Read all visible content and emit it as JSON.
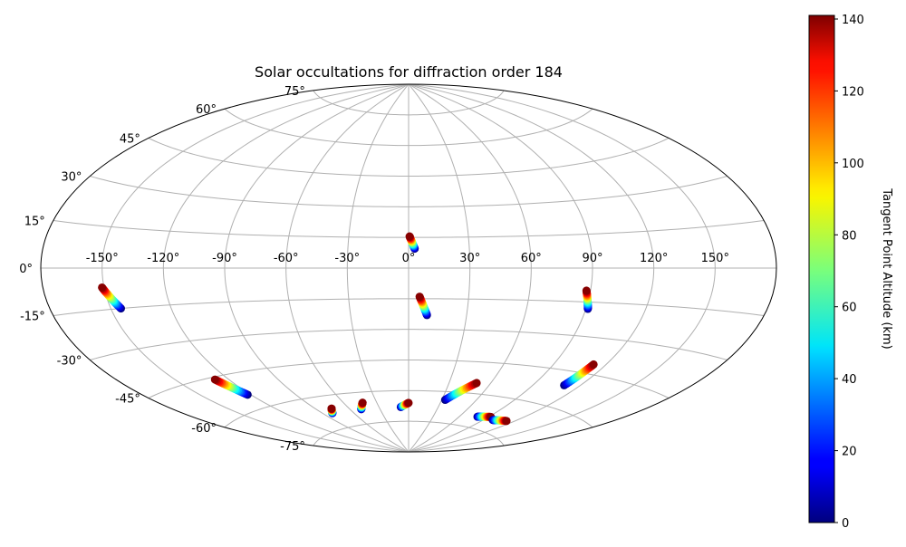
{
  "chart_data": {
    "type": "scatter",
    "projection": "aitoff",
    "title": "Solar occultations for diffraction order 184",
    "xlabel": "",
    "ylabel": "",
    "grid": true,
    "x_ticks": [
      "-150°",
      "-120°",
      "-90°",
      "-60°",
      "-30°",
      "0°",
      "30°",
      "60°",
      "90°",
      "120°",
      "150°"
    ],
    "x_tick_values": [
      -150,
      -120,
      -90,
      -60,
      -30,
      0,
      30,
      60,
      90,
      120,
      150
    ],
    "y_ticks": [
      "-75°",
      "-60°",
      "-45°",
      "-30°",
      "-15°",
      "0°",
      "15°",
      "30°",
      "45°",
      "60°",
      "75°"
    ],
    "y_tick_values": [
      -75,
      -60,
      -45,
      -30,
      -15,
      0,
      15,
      30,
      45,
      60,
      75
    ],
    "colorbar": {
      "label": "Tangent Point Altitude (km)",
      "range": [
        0,
        141
      ],
      "colormap": "jet",
      "ticks": [
        "0",
        "20",
        "40",
        "60",
        "80",
        "100",
        "120",
        "140"
      ],
      "tick_values": [
        0,
        20,
        40,
        60,
        80,
        100,
        120,
        140
      ]
    },
    "series": [
      {
        "start": [
          -151,
          -7
        ],
        "end": [
          -145,
          -15
        ],
        "alt_start": 140,
        "alt_end": 0
      },
      {
        "start": [
          0.5,
          15.5
        ],
        "end": [
          3,
          9.5
        ],
        "alt_start": 140,
        "alt_end": 0
      },
      {
        "start": [
          5.5,
          -14
        ],
        "end": [
          9.5,
          -23
        ],
        "alt_start": 140,
        "alt_end": 0
      },
      {
        "start": [
          88,
          -10
        ],
        "end": [
          91,
          -18
        ],
        "alt_start": 140,
        "alt_end": 0
      },
      {
        "start": [
          -128,
          -46
        ],
        "end": [
          -122,
          -54
        ],
        "alt_start": 140,
        "alt_end": 0
      },
      {
        "start": [
          113,
          -41
        ],
        "end": [
          110,
          -51
        ],
        "alt_start": 140,
        "alt_end": 0
      },
      {
        "start": [
          50,
          -55
        ],
        "end": [
          33,
          -64
        ],
        "alt_start": 140,
        "alt_end": 0
      },
      {
        "start": [
          -76,
          -66
        ],
        "end": [
          -81,
          -68
        ],
        "alt_start": 140,
        "alt_end": 0
      },
      {
        "start": [
          -43,
          -65
        ],
        "end": [
          -49,
          -68
        ],
        "alt_start": 140,
        "alt_end": 0
      },
      {
        "start": [
          0,
          -66
        ],
        "end": [
          -8,
          -68
        ],
        "alt_start": 140,
        "alt_end": 0
      },
      {
        "start": [
          92,
          -69
        ],
        "end": [
          79,
          -70
        ],
        "alt_start": 140,
        "alt_end": 0
      },
      {
        "start": [
          113,
          -69
        ],
        "end": [
          99,
          -70
        ],
        "alt_start": 140,
        "alt_end": 0
      }
    ]
  },
  "colors": {
    "grid": "#b0b0b0",
    "frame": "#000000"
  }
}
